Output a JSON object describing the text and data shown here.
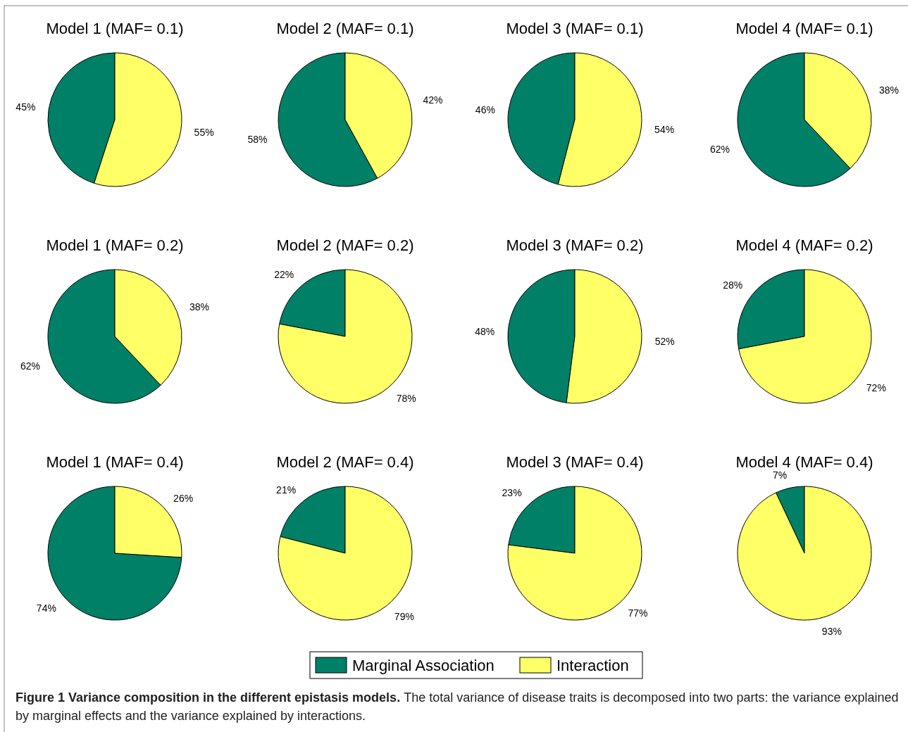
{
  "chart_data": [
    {
      "type": "pie",
      "title": "Model 1 (MAF= 0.1)",
      "categories": [
        null,
        null
      ],
      "values": [
        45,
        55
      ],
      "value_labels": [
        "45%",
        "55%"
      ],
      "colors": [
        "#008066",
        "#ffff66"
      ]
    },
    {
      "type": "pie",
      "title": "Model 2 (MAF= 0.1)",
      "categories": [
        null,
        null
      ],
      "values": [
        58,
        42
      ],
      "value_labels": [
        "58%",
        "42%"
      ],
      "colors": [
        "#008066",
        "#ffff66"
      ]
    },
    {
      "type": "pie",
      "title": "Model 3 (MAF= 0.1)",
      "categories": [
        null,
        null
      ],
      "values": [
        46,
        54
      ],
      "value_labels": [
        "46%",
        "54%"
      ],
      "colors": [
        "#008066",
        "#ffff66"
      ]
    },
    {
      "type": "pie",
      "title": "Model 4 (MAF= 0.1)",
      "categories": [
        null,
        null
      ],
      "values": [
        62,
        38
      ],
      "value_labels": [
        "62%",
        "38%"
      ],
      "colors": [
        "#008066",
        "#ffff66"
      ]
    },
    {
      "type": "pie",
      "title": "Model 1 (MAF= 0.2)",
      "categories": [
        null,
        null
      ],
      "values": [
        62,
        38
      ],
      "value_labels": [
        "62%",
        "38%"
      ],
      "colors": [
        "#008066",
        "#ffff66"
      ]
    },
    {
      "type": "pie",
      "title": "Model 2 (MAF= 0.2)",
      "categories": [
        null,
        null
      ],
      "values": [
        22,
        78
      ],
      "value_labels": [
        "22%",
        "78%"
      ],
      "colors": [
        "#008066",
        "#ffff66"
      ]
    },
    {
      "type": "pie",
      "title": "Model 3 (MAF= 0.2)",
      "categories": [
        null,
        null
      ],
      "values": [
        48,
        52
      ],
      "value_labels": [
        "48%",
        "52%"
      ],
      "colors": [
        "#008066",
        "#ffff66"
      ]
    },
    {
      "type": "pie",
      "title": "Model 4 (MAF= 0.2)",
      "categories": [
        null,
        null
      ],
      "values": [
        28,
        72
      ],
      "value_labels": [
        "28%",
        "72%"
      ],
      "colors": [
        "#008066",
        "#ffff66"
      ]
    },
    {
      "type": "pie",
      "title": "Model 1 (MAF= 0.4)",
      "categories": [
        null,
        null
      ],
      "values": [
        74,
        26
      ],
      "value_labels": [
        "74%",
        "26%"
      ],
      "colors": [
        "#008066",
        "#ffff66"
      ]
    },
    {
      "type": "pie",
      "title": "Model 2 (MAF= 0.4)",
      "categories": [
        null,
        null
      ],
      "values": [
        21,
        79
      ],
      "value_labels": [
        "21%",
        "79%"
      ],
      "colors": [
        "#008066",
        "#ffff66"
      ]
    },
    {
      "type": "pie",
      "title": "Model 3 (MAF= 0.4)",
      "categories": [
        null,
        null
      ],
      "values": [
        23,
        77
      ],
      "value_labels": [
        "23%",
        "77%"
      ],
      "colors": [
        "#008066",
        "#ffff66"
      ]
    },
    {
      "type": "pie",
      "title": "Model 4 (MAF= 0.4)",
      "categories": [
        "Marginal Association",
        "Interaction"
      ],
      "values": [
        7,
        93
      ],
      "value_labels": [
        "7%",
        "93%"
      ],
      "colors": [
        "#008066",
        "#ffff66"
      ],
      "legend": "bottom",
      "annotations": [
        "Figure 1 Variance composition in the different epistasis models.",
        "The total variance of disease traits is decomposed into two parts: the variance explained by marginal effects and the variance explained by interactions."
      ]
    }
  ]
}
